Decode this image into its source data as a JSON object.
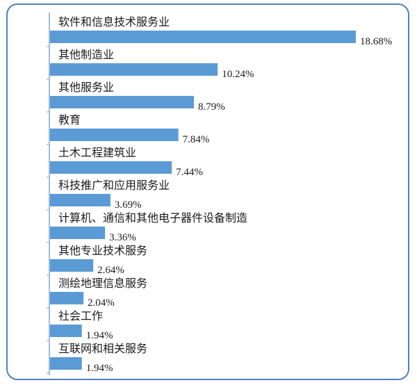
{
  "chart_data": {
    "type": "bar",
    "orientation": "horizontal",
    "categories": [
      "软件和信息技术服务业",
      "其他制造业",
      "其他服务业",
      "教育",
      "土木工程建筑业",
      "科技推广和应用服务业",
      "计算机、通信和其他电子器件设备制造",
      "其他专业技术服务",
      "测绘地理信息服务",
      "社会工作",
      "互联网和相关服务"
    ],
    "values": [
      18.68,
      10.24,
      8.79,
      7.84,
      7.44,
      3.69,
      3.36,
      2.64,
      2.04,
      1.94,
      1.94
    ],
    "value_labels": [
      "18.68%",
      "10.24%",
      "8.79%",
      "7.84%",
      "7.44%",
      "3.69%",
      "3.36%",
      "2.64%",
      "2.04%",
      "1.94%",
      "1.94%"
    ],
    "title": "",
    "xlabel": "",
    "ylabel": "",
    "xlim": [
      0,
      18.68
    ],
    "grid": false,
    "legend": "none",
    "bar_color": "#5b9bd5",
    "axis_color": "#9dbde0",
    "frame_color": "#4f81bd"
  }
}
